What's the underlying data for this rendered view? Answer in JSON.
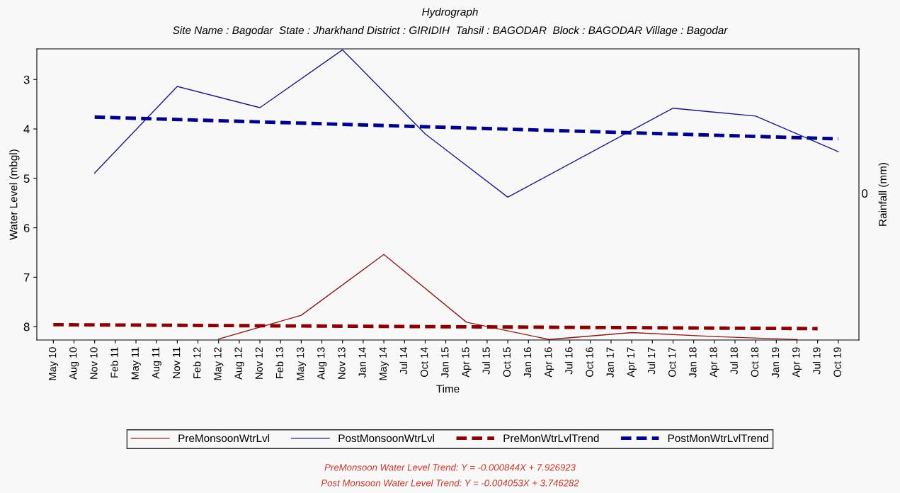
{
  "chart_data": {
    "type": "line",
    "title": "Hydrograph",
    "subtitle": "Site Name : Bagodar  State : Jharkhand District : GIRIDIH  Tahsil : BAGODAR  Block : BAGODAR Village : Bagodar",
    "xlabel": "Time",
    "ylabel": "Water Level (mbgl)",
    "y2label": "Rainfall (mm)",
    "categories": [
      "May 10",
      "Aug 10",
      "Nov 10",
      "Feb 11",
      "May 11",
      "Aug 11",
      "Nov 11",
      "Feb 12",
      "May 12",
      "Aug 12",
      "Nov 12",
      "Feb 13",
      "May 13",
      "Aug 13",
      "Nov 13",
      "Jan 14",
      "May 14",
      "Jul 14",
      "Oct 14",
      "Jan 15",
      "Apr 15",
      "Jul 15",
      "Oct 15",
      "Jan 16",
      "Apr 16",
      "Jul 16",
      "Oct 16",
      "Jan 17",
      "Apr 17",
      "Jul 17",
      "Oct 17",
      "Jan 18",
      "Apr 18",
      "Jul 18",
      "Oct 18",
      "Jan 19",
      "Apr 19",
      "Jul 19",
      "Oct 19"
    ],
    "series": [
      {
        "name": "PreMonsoonWtrLvl",
        "color": "#8b1a1a",
        "line_style": "solid",
        "values": [
          null,
          null,
          null,
          null,
          null,
          null,
          null,
          null,
          8.25,
          null,
          null,
          null,
          7.77,
          null,
          null,
          null,
          6.54,
          null,
          null,
          null,
          7.91,
          null,
          null,
          null,
          8.26,
          null,
          null,
          null,
          8.12,
          null,
          null,
          null,
          8.2,
          null,
          null,
          null,
          8.26,
          null,
          null
        ]
      },
      {
        "name": "PostMonsoonWtrLvl",
        "color": "#1a1a80",
        "line_style": "solid",
        "values": [
          null,
          null,
          4.89,
          null,
          null,
          null,
          3.14,
          null,
          null,
          null,
          3.57,
          null,
          null,
          null,
          2.4,
          null,
          null,
          null,
          4.1,
          null,
          null,
          null,
          5.38,
          null,
          null,
          null,
          null,
          null,
          null,
          null,
          3.58,
          null,
          null,
          null,
          3.74,
          null,
          null,
          null,
          4.46
        ]
      },
      {
        "name": "PreMonWtrLvlTrend",
        "color": "#8b0000",
        "line_style": "dashed",
        "values": [
          7.96,
          null,
          null,
          null,
          null,
          null,
          null,
          null,
          null,
          null,
          null,
          null,
          null,
          null,
          null,
          null,
          null,
          null,
          null,
          null,
          null,
          null,
          null,
          null,
          null,
          null,
          null,
          null,
          null,
          null,
          null,
          null,
          null,
          null,
          null,
          null,
          null,
          8.04,
          null
        ]
      },
      {
        "name": "PostMonWtrLvlTrend",
        "color": "#00008b",
        "line_style": "dashed",
        "values": [
          null,
          null,
          3.76,
          null,
          null,
          null,
          null,
          null,
          null,
          null,
          null,
          null,
          null,
          null,
          null,
          null,
          null,
          null,
          null,
          null,
          null,
          null,
          null,
          null,
          null,
          null,
          null,
          null,
          null,
          null,
          null,
          null,
          null,
          null,
          null,
          null,
          null,
          null,
          4.2
        ]
      }
    ],
    "ylim": [
      8.27,
      2.38
    ],
    "yticks": [
      3,
      4,
      5,
      6,
      7,
      8
    ],
    "grid": false,
    "legend": "bottom",
    "marker": "none",
    "annotations": [
      "0",
      "PreMonsoon Water Level Trend: Y = -0.000844X + 7.926923",
      "Post Monsoon Water Level Trend: Y = -0.004053X + 3.746282"
    ]
  }
}
